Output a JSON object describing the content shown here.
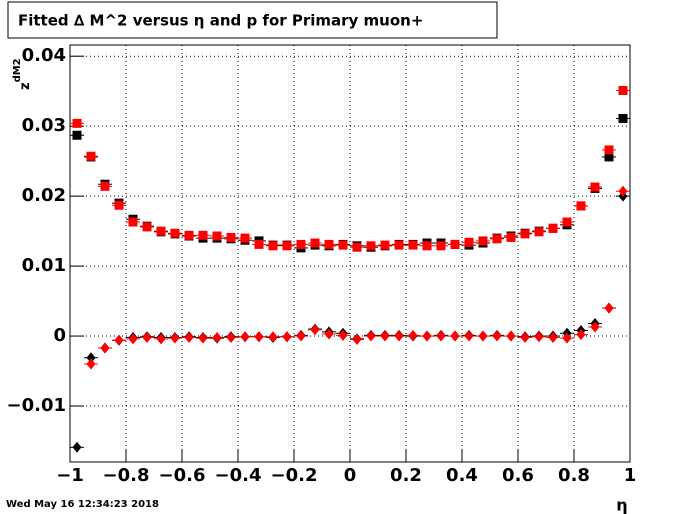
{
  "chart_data": {
    "type": "scatter",
    "title": "Fitted ∆ M^2 versus η and p for Primary muon+",
    "y_label": "z",
    "y_label_sub": "dM2",
    "x_label": "η",
    "timestamp": "Wed May 16 12:34:23 2018",
    "grid": true,
    "xlim": [
      -1,
      1
    ],
    "xticks": [
      {
        "value": -1,
        "label": "−1"
      },
      {
        "value": -0.8,
        "label": "−0.8"
      },
      {
        "value": -0.6,
        "label": "−0.6"
      },
      {
        "value": -0.4,
        "label": "−0.4"
      },
      {
        "value": -0.2,
        "label": "−0.2"
      },
      0,
      0.2,
      0.4,
      0.6,
      0.8,
      1
    ],
    "ylim": [
      -0.018,
      0.0416
    ],
    "yticks": [
      {
        "value": -0.01,
        "label": "−0.01"
      },
      0,
      0.01,
      0.02,
      0.03,
      0.04
    ],
    "x": [
      -0.975,
      -0.925,
      -0.875,
      -0.825,
      -0.775,
      -0.725,
      -0.675,
      -0.625,
      -0.575,
      -0.525,
      -0.475,
      -0.425,
      -0.375,
      -0.325,
      -0.275,
      -0.225,
      -0.175,
      -0.125,
      -0.075,
      -0.025,
      0.025,
      0.075,
      0.125,
      0.175,
      0.225,
      0.275,
      0.325,
      0.375,
      0.425,
      0.475,
      0.525,
      0.575,
      0.625,
      0.675,
      0.725,
      0.775,
      0.825,
      0.875,
      0.925,
      0.975
    ],
    "series": [
      {
        "color": "#000000",
        "marker": "square",
        "values": [
          0.0287,
          0.0256,
          0.0217,
          0.019,
          0.0167,
          0.0157,
          0.0149,
          0.0146,
          0.0143,
          0.014,
          0.014,
          0.0139,
          0.0137,
          0.0136,
          0.013,
          0.013,
          0.0126,
          0.013,
          0.0129,
          0.0131,
          0.0129,
          0.0127,
          0.0129,
          0.0131,
          0.0131,
          0.0133,
          0.0133,
          0.0131,
          0.013,
          0.0133,
          0.014,
          0.0143,
          0.0147,
          0.015,
          0.0154,
          0.0159,
          0.0186,
          0.0211,
          0.0256,
          0.0311
        ]
      },
      {
        "color": "#ff0000",
        "marker": "square",
        "values": [
          0.0304,
          0.0257,
          0.0214,
          0.0187,
          0.0163,
          0.0156,
          0.015,
          0.0147,
          0.0144,
          0.0144,
          0.0143,
          0.0141,
          0.014,
          0.0131,
          0.0129,
          0.0129,
          0.0131,
          0.0133,
          0.0131,
          0.013,
          0.0127,
          0.0129,
          0.013,
          0.013,
          0.013,
          0.0129,
          0.0129,
          0.0131,
          0.0134,
          0.0136,
          0.0139,
          0.0141,
          0.0146,
          0.0149,
          0.0154,
          0.0163,
          0.0186,
          0.0213,
          0.0266,
          0.0351
        ]
      },
      {
        "color": "#000000",
        "marker": "diamond",
        "values": [
          -0.0159,
          -0.0031,
          -0.0017,
          -0.0006,
          -0.0002,
          -0.0001,
          -0.0002,
          -0.0002,
          -0.0001,
          -0.0002,
          -0.0003,
          -0.0001,
          -0.0001,
          -0.0001,
          -0.0002,
          -0.0001,
          0.0001,
          0.001,
          0.0006,
          0.0004,
          -0.0004,
          0.0001,
          0.0001,
          0.0001,
          0,
          0,
          0.0001,
          0,
          0.0001,
          0,
          0.0001,
          0,
          -0.0001,
          0,
          0,
          0.0004,
          0.0008,
          0.0018,
          0.004,
          0.02
        ]
      },
      {
        "color": "#ff0000",
        "marker": "diamond",
        "values": [
          null,
          -0.004,
          -0.0017,
          -0.0006,
          -0.0004,
          -0.0002,
          -0.0004,
          -0.0003,
          -0.0002,
          -0.0003,
          -0.0002,
          -0.0002,
          -0.0001,
          -0.0001,
          -0.0001,
          -0.0001,
          0,
          0.0009,
          0.0003,
          0.0001,
          -0.0005,
          0,
          0,
          0,
          0.0001,
          0,
          0,
          0,
          0,
          0,
          0,
          0,
          -0.0002,
          -0.0001,
          -0.0002,
          -0.0003,
          0.0002,
          0.0013,
          0.004,
          0.0207
        ]
      }
    ]
  }
}
